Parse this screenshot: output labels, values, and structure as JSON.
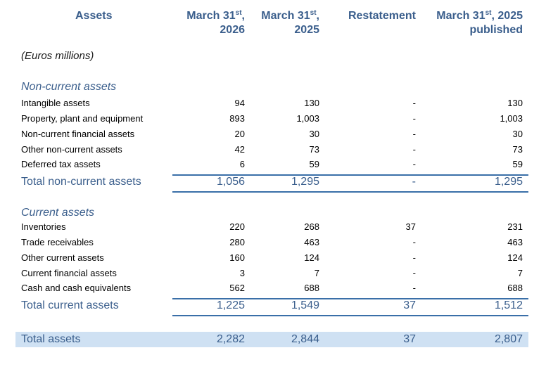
{
  "header": {
    "assets_label": "Assets",
    "col1": {
      "line1": "March 31",
      "sup": "st",
      "line1_end": ",",
      "line2": "2026"
    },
    "col2": {
      "line1": "March 31",
      "sup": "st",
      "line1_end": ",",
      "line2": "2025"
    },
    "col3": {
      "line1": "Restatement"
    },
    "col4": {
      "line1": "March 31",
      "sup": "st",
      "line1_end": ", 2025",
      "line2": "published"
    }
  },
  "units": "(Euros millions)",
  "non_current": {
    "title": "Non-current assets",
    "rows": [
      {
        "label": "Intangible assets",
        "c1": "94",
        "c2": "130",
        "c3": "-",
        "c4": "130"
      },
      {
        "label": "Property, plant and equipment",
        "c1": "893",
        "c2": "1,003",
        "c3": "-",
        "c4": "1,003"
      },
      {
        "label": "Non-current financial assets",
        "c1": "20",
        "c2": "30",
        "c3": "-",
        "c4": "30"
      },
      {
        "label": "Other non-current assets",
        "c1": "42",
        "c2": "73",
        "c3": "-",
        "c4": "73"
      },
      {
        "label": "Deferred tax assets",
        "c1": "6",
        "c2": "59",
        "c3": "-",
        "c4": "59"
      }
    ],
    "total": {
      "label": "Total non-current assets",
      "c1": "1,056",
      "c2": "1,295",
      "c3": "-",
      "c4": "1,295"
    }
  },
  "current": {
    "title": "Current assets",
    "rows": [
      {
        "label": "Inventories",
        "c1": "220",
        "c2": "268",
        "c3": "37",
        "c4": "231"
      },
      {
        "label": "Trade receivables",
        "c1": "280",
        "c2": "463",
        "c3": "-",
        "c4": "463"
      },
      {
        "label": "Other current assets",
        "c1": "160",
        "c2": "124",
        "c3": "-",
        "c4": "124"
      },
      {
        "label": "Current financial assets",
        "c1": "3",
        "c2": "7",
        "c3": "-",
        "c4": "7"
      },
      {
        "label": "Cash and cash equivalents",
        "c1": "562",
        "c2": "688",
        "c3": "-",
        "c4": "688"
      }
    ],
    "total": {
      "label": "Total current assets",
      "c1": "1,225",
      "c2": "1,549",
      "c3": "37",
      "c4": "1,512"
    }
  },
  "grand_total": {
    "label": "Total assets",
    "c1": "2,282",
    "c2": "2,844",
    "c3": "37",
    "c4": "2,807"
  },
  "colors": {
    "accent": "#3a5e8c",
    "rule": "#3a6fa8",
    "band": "#cfe1f3"
  }
}
